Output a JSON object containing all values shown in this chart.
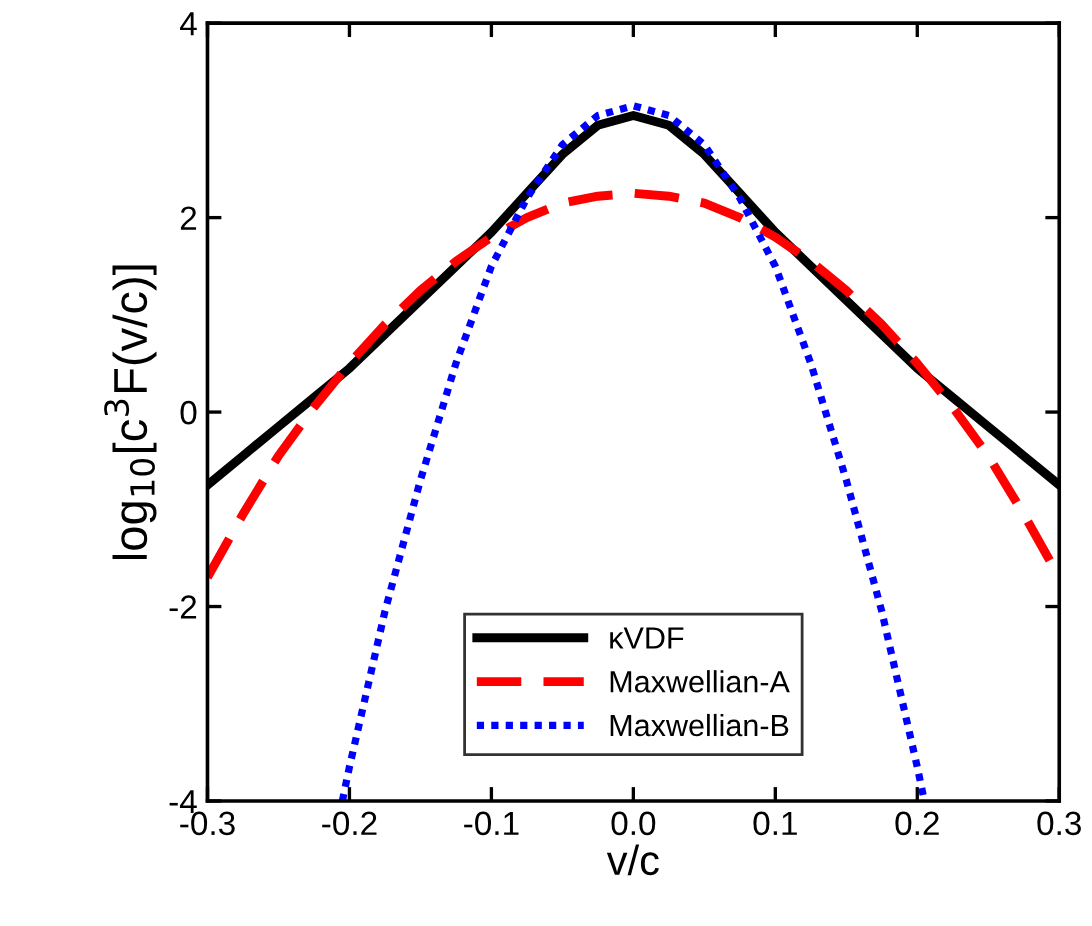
{
  "chart_data": {
    "type": "line",
    "xlabel": "v/c",
    "ylabel": "log$_{10}$[c$^{3}$F(v/c)]",
    "xlim": [
      -0.3,
      0.3
    ],
    "xticks": [
      -0.3,
      -0.2,
      -0.1,
      {
        "value": 0,
        "label": "0.0"
      },
      0.1,
      0.2,
      0.3
    ],
    "ylim": [
      -4,
      4
    ],
    "yticks": [
      -4,
      -2,
      0,
      2,
      4
    ],
    "grid": false,
    "legend": "bottom",
    "series": [
      {
        "name": "κVDF",
        "color": "#000000",
        "line_style": "solid",
        "x": [
          -0.3,
          -0.275,
          -0.25,
          -0.225,
          -0.2,
          -0.175,
          -0.15,
          -0.125,
          -0.1,
          -0.075,
          -0.05,
          -0.025,
          0,
          0.025,
          0.05,
          0.075,
          0.1,
          0.125,
          0.15,
          0.175,
          0.2,
          0.225,
          0.25,
          0.275,
          0.3
        ],
        "values": [
          -0.75,
          -0.45,
          -0.15,
          0.15,
          0.45,
          0.8,
          1.15,
          1.5,
          1.85,
          2.25,
          2.65,
          2.95,
          3.05,
          2.95,
          2.65,
          2.25,
          1.85,
          1.5,
          1.15,
          0.8,
          0.45,
          0.15,
          -0.15,
          -0.45,
          -0.75
        ]
      },
      {
        "name": "Maxwellian-A",
        "color": "#ff0000",
        "line_style": "dashed",
        "x": [
          -0.3,
          -0.275,
          -0.25,
          -0.225,
          -0.2,
          -0.175,
          -0.15,
          -0.125,
          -0.1,
          -0.075,
          -0.05,
          -0.025,
          0,
          0.025,
          0.05,
          0.075,
          0.1,
          0.125,
          0.15,
          0.175,
          0.2,
          0.225,
          0.25,
          0.275,
          0.3
        ],
        "values": [
          -1.7,
          -1.05,
          -0.45,
          0.05,
          0.5,
          0.9,
          1.25,
          1.55,
          1.8,
          2.0,
          2.15,
          2.22,
          2.25,
          2.22,
          2.15,
          2.0,
          1.8,
          1.55,
          1.25,
          0.9,
          0.5,
          0.05,
          -0.45,
          -1.05,
          -1.7
        ]
      },
      {
        "name": "Maxwellian-B",
        "color": "#0000ff",
        "line_style": "dotted",
        "x": [
          -0.205,
          -0.2,
          -0.175,
          -0.15,
          -0.125,
          -0.1,
          -0.075,
          -0.05,
          -0.025,
          0,
          0.025,
          0.05,
          0.075,
          0.1,
          0.125,
          0.15,
          0.175,
          0.2,
          0.205
        ],
        "values": [
          -4.0,
          -3.65,
          -2.05,
          -0.7,
          0.5,
          1.5,
          2.2,
          2.75,
          3.05,
          3.15,
          3.05,
          2.75,
          2.2,
          1.5,
          0.5,
          -0.7,
          -2.05,
          -3.65,
          -4.0
        ]
      }
    ]
  }
}
